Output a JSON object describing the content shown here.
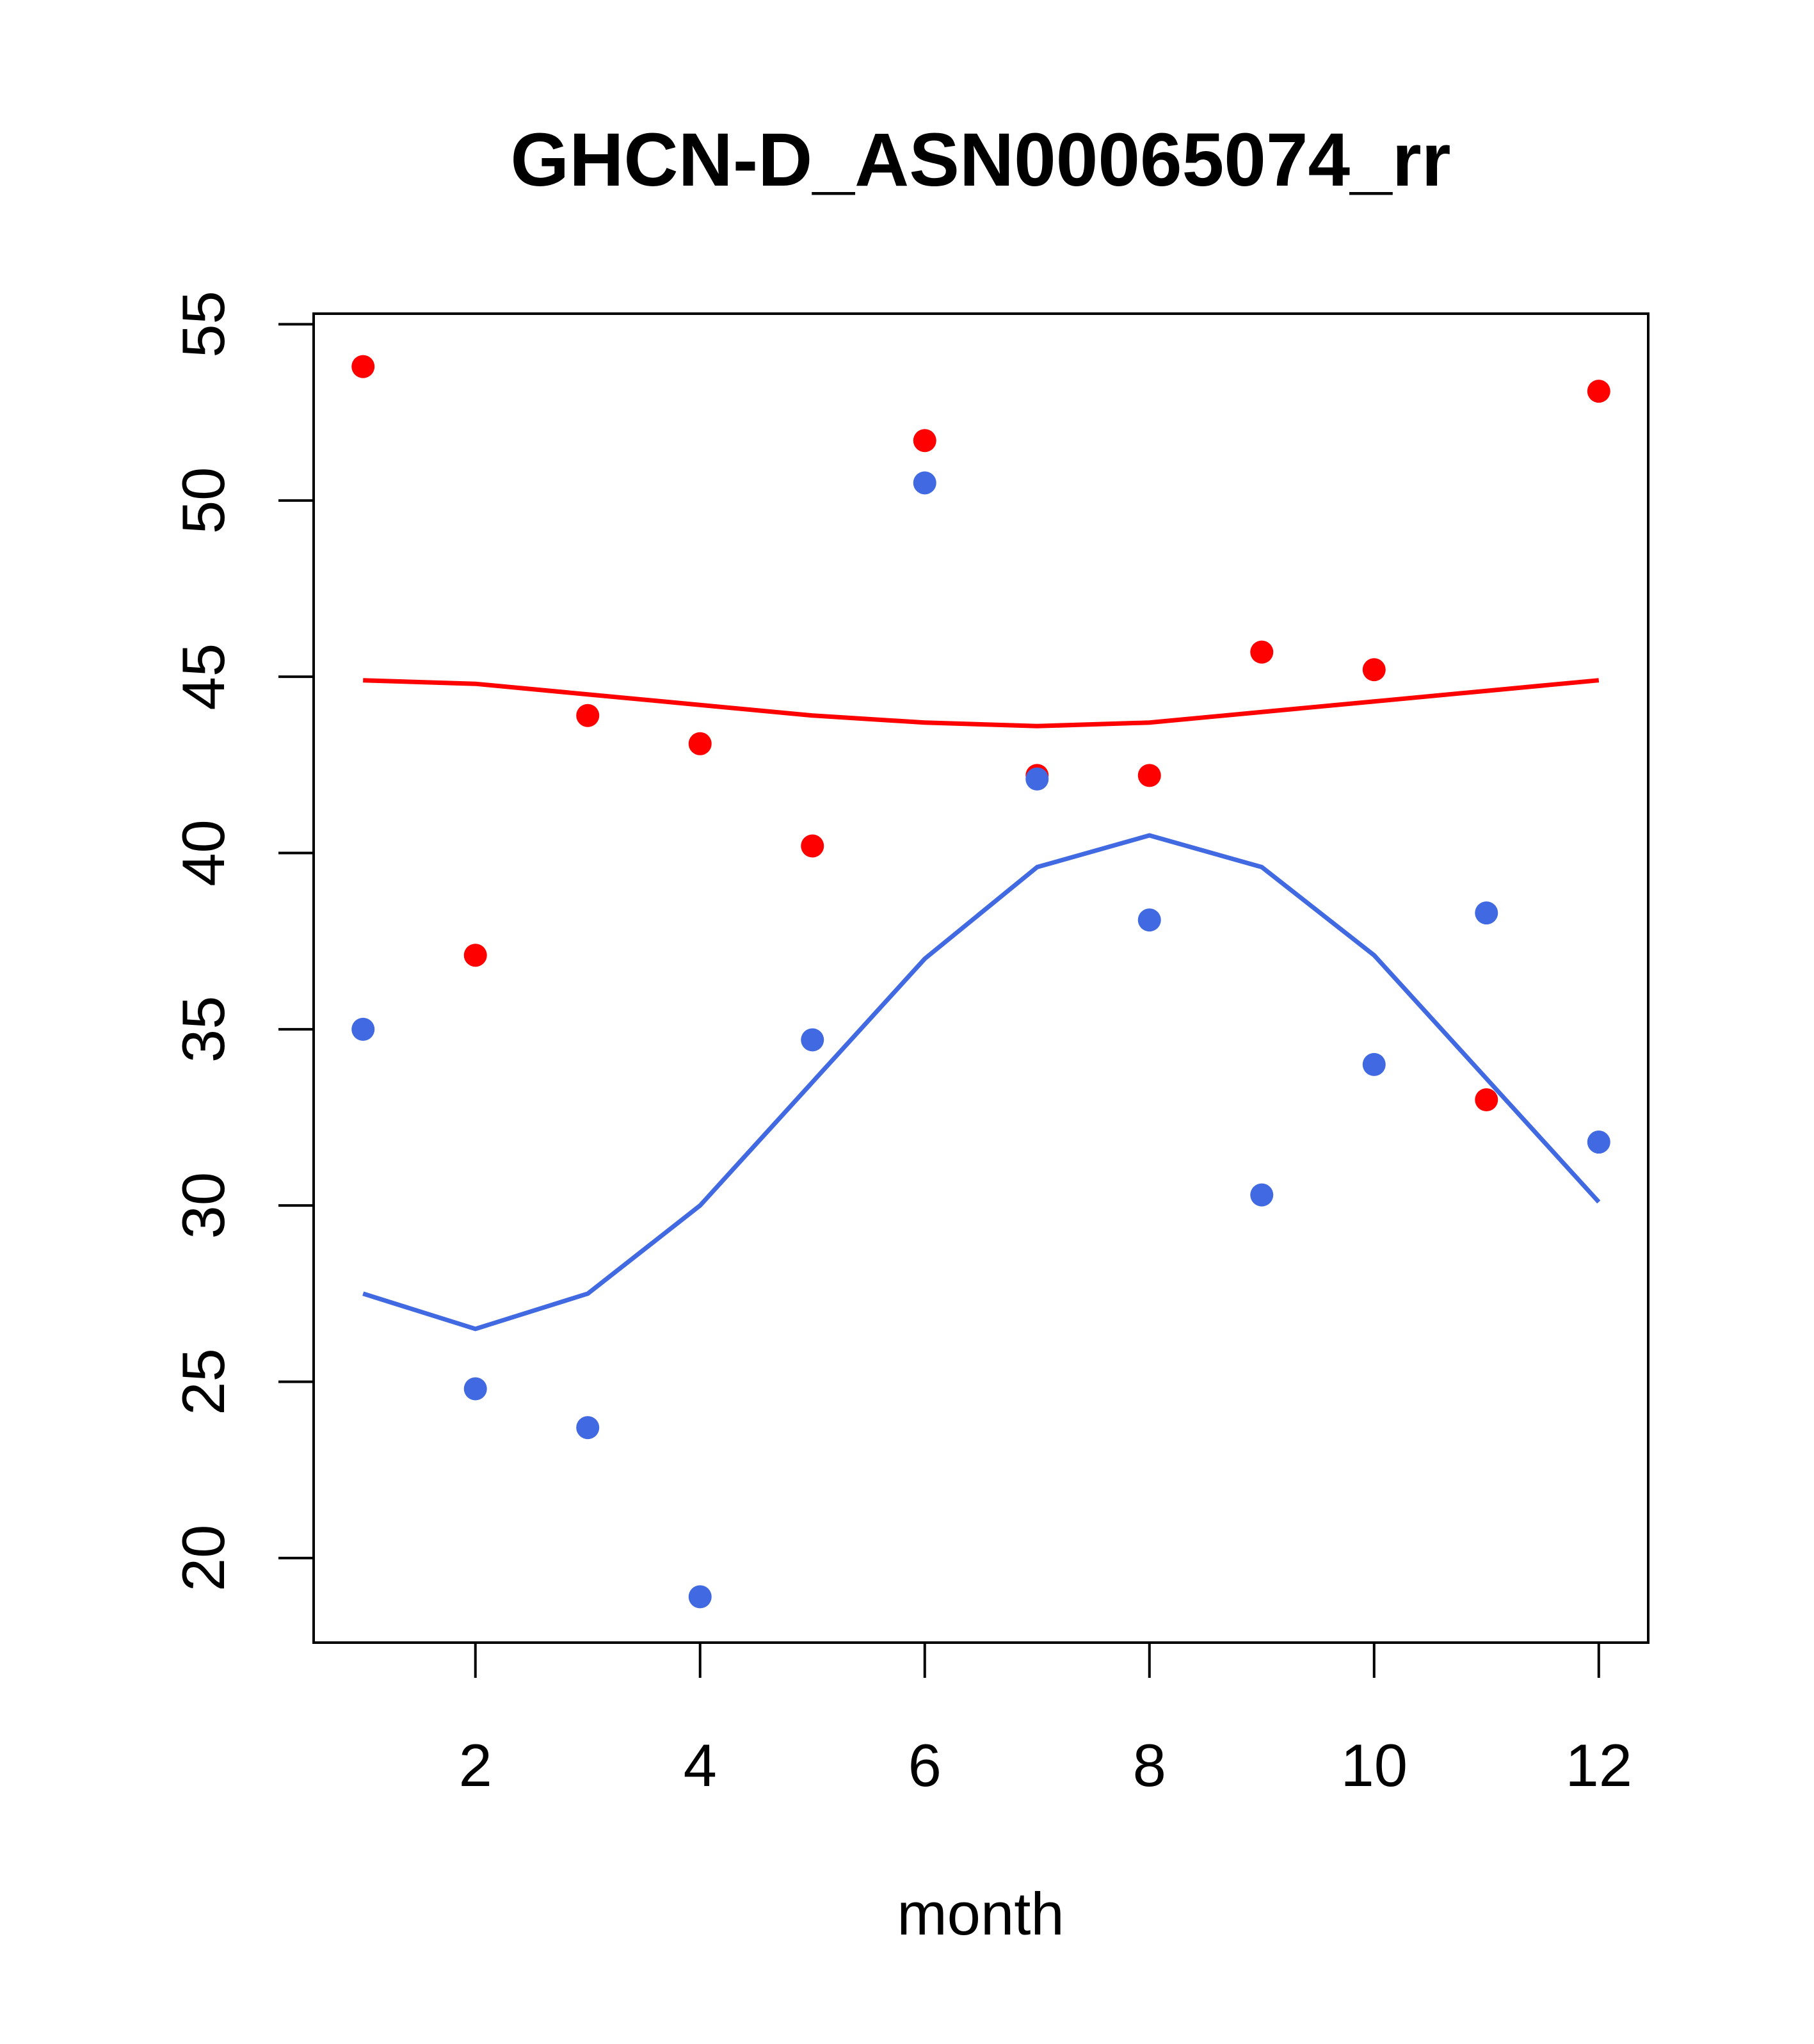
{
  "chart_data": {
    "type": "scatter",
    "title": "GHCN-D_ASN00065074_rr",
    "xlabel": "month",
    "ylabel": "",
    "xlim": [
      0.56,
      12.44
    ],
    "ylim": [
      17.6,
      55.3
    ],
    "x_ticks": [
      2,
      4,
      6,
      8,
      10,
      12
    ],
    "y_ticks": [
      20,
      25,
      30,
      35,
      40,
      45,
      50,
      55
    ],
    "grid": false,
    "legend": "none",
    "series": [
      {
        "name": "red-points",
        "type": "scatter",
        "color": "#ff0000",
        "x": [
          1,
          2,
          3,
          4,
          5,
          6,
          7,
          8,
          9,
          10,
          11,
          12
        ],
        "values": [
          53.8,
          37.1,
          43.9,
          43.1,
          40.2,
          51.7,
          42.2,
          42.2,
          45.7,
          45.2,
          33.0,
          53.1
        ]
      },
      {
        "name": "blue-points",
        "type": "scatter",
        "color": "#4169e1",
        "x": [
          1,
          2,
          3,
          4,
          5,
          6,
          7,
          8,
          9,
          10,
          11,
          12
        ],
        "values": [
          35.0,
          24.8,
          23.7,
          18.9,
          34.7,
          50.5,
          42.1,
          38.1,
          30.3,
          34.0,
          38.3,
          31.8
        ]
      },
      {
        "name": "red-line",
        "type": "line",
        "color": "#ff0000",
        "x": [
          1,
          2,
          3,
          4,
          5,
          6,
          7,
          8,
          9,
          10,
          11,
          12
        ],
        "values": [
          44.9,
          44.8,
          44.5,
          44.2,
          43.9,
          43.7,
          43.6,
          43.7,
          44.0,
          44.3,
          44.6,
          44.9
        ]
      },
      {
        "name": "blue-line",
        "type": "line",
        "color": "#4169e1",
        "x": [
          1,
          2,
          3,
          4,
          5,
          6,
          7,
          8,
          9,
          10,
          11,
          12
        ],
        "values": [
          27.5,
          26.5,
          27.5,
          30.0,
          33.5,
          37.0,
          39.6,
          40.5,
          39.6,
          37.1,
          33.6,
          30.1
        ]
      }
    ]
  }
}
